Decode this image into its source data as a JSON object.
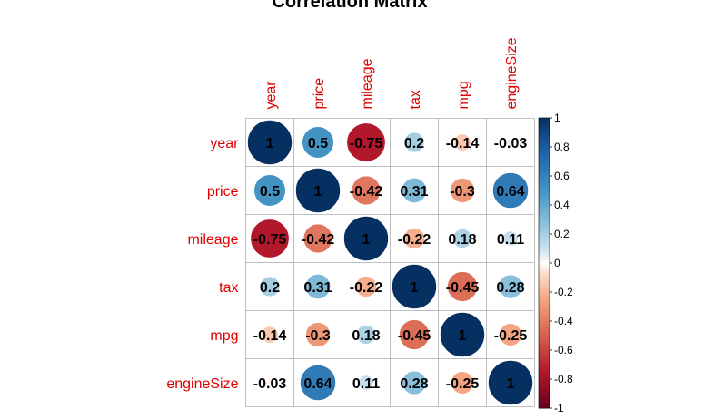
{
  "chart_data": {
    "type": "heatmap",
    "title": "Correlation Matrix",
    "variables": [
      "year",
      "price",
      "mileage",
      "tax",
      "mpg",
      "engineSize"
    ],
    "matrix": [
      [
        1,
        0.5,
        -0.75,
        0.2,
        -0.14,
        -0.03
      ],
      [
        0.5,
        1,
        -0.42,
        0.31,
        -0.3,
        0.64
      ],
      [
        -0.75,
        -0.42,
        1,
        -0.22,
        0.18,
        0.11
      ],
      [
        0.2,
        0.31,
        -0.22,
        1,
        -0.45,
        0.28
      ],
      [
        -0.14,
        -0.3,
        0.18,
        -0.45,
        1,
        -0.25
      ],
      [
        -0.03,
        0.64,
        0.11,
        0.28,
        -0.25,
        1
      ]
    ],
    "cell_labels": [
      [
        "1",
        "0.5",
        "-0.75",
        "0.2",
        "-0.14",
        "-0.03"
      ],
      [
        "0.5",
        "1",
        "-0.42",
        "0.31",
        "-0.3",
        "0.64"
      ],
      [
        "-0.75",
        "-0.42",
        "1",
        "-0.22",
        "0.18",
        "0.11"
      ],
      [
        "0.2",
        "0.31",
        "-0.22",
        "1",
        "-0.45",
        "0.28"
      ],
      [
        "-0.14",
        "-0.3",
        "0.18",
        "-0.45",
        "1",
        "-0.25"
      ],
      [
        "-0.03",
        "0.64",
        "0.11",
        "0.28",
        "-0.25",
        "1"
      ]
    ],
    "colorbar": {
      "range": [
        -1,
        1
      ],
      "ticks": [
        -1,
        -0.8,
        -0.6,
        -0.4,
        -0.2,
        0,
        0.2,
        0.4,
        0.6,
        0.8,
        1
      ],
      "tick_labels": [
        "-1",
        "-0.8",
        "-0.6",
        "-0.4",
        "-0.2",
        "0",
        "0.2",
        "0.4",
        "0.6",
        "0.8",
        "1"
      ],
      "colors": {
        "negative_strong": "#67001f",
        "negative_mid": "#b2182b",
        "negative_light": "#f4a582",
        "neutral": "#ffffff",
        "positive_light": "#92c5de",
        "positive_mid": "#2166ac",
        "positive_strong": "#053061"
      }
    },
    "label_color": "#e00000",
    "grid": true,
    "legend_placement": "right"
  }
}
